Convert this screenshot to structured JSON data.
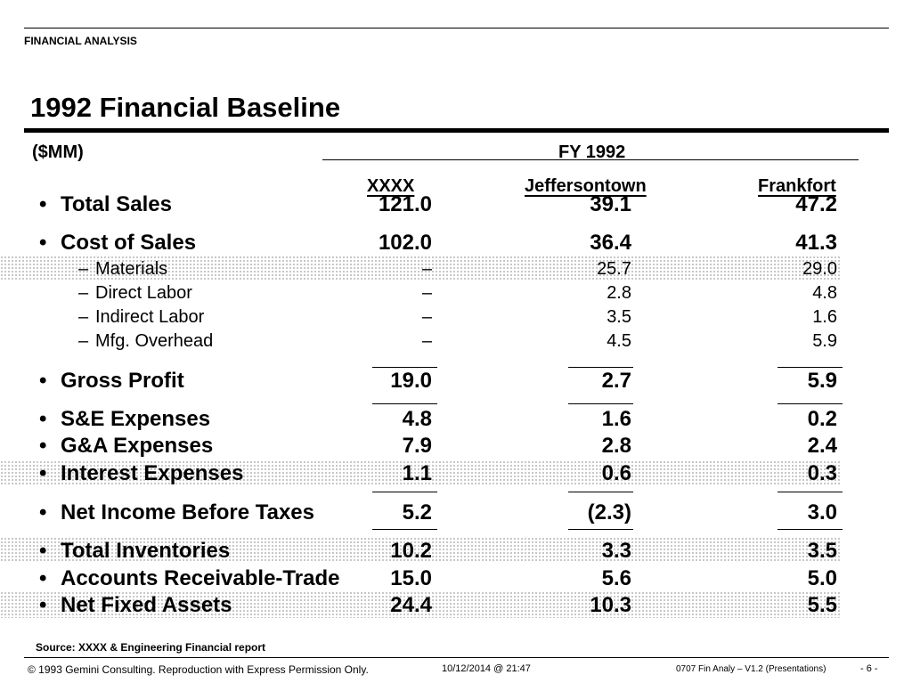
{
  "header": {
    "section_label": "FINANCIAL ANALYSIS"
  },
  "title": "1992 Financial Baseline",
  "units": "($MM)",
  "period_header": "FY 1992",
  "columns": [
    "XXXX",
    "Jeffersontown",
    "Frankfort"
  ],
  "bullet": "•",
  "dash": "–",
  "rows": [
    {
      "label": "Total Sales",
      "values": [
        "121.0",
        "39.1",
        "47.2"
      ]
    },
    {
      "label": "Cost of Sales",
      "values": [
        "102.0",
        "36.4",
        "41.3"
      ]
    },
    {
      "label": "Materials",
      "values": [
        "–",
        "25.7",
        "29.0"
      ]
    },
    {
      "label": "Direct Labor",
      "values": [
        "–",
        "2.8",
        "4.8"
      ]
    },
    {
      "label": "Indirect Labor",
      "values": [
        "–",
        "3.5",
        "1.6"
      ]
    },
    {
      "label": "Mfg. Overhead",
      "values": [
        "–",
        "4.5",
        "5.9"
      ]
    },
    {
      "label": "Gross Profit",
      "values": [
        "19.0",
        "2.7",
        "5.9"
      ]
    },
    {
      "label": "S&E Expenses",
      "values": [
        "4.8",
        "1.6",
        "0.2"
      ]
    },
    {
      "label": "G&A Expenses",
      "values": [
        "7.9",
        "2.8",
        "2.4"
      ]
    },
    {
      "label": "Interest Expenses",
      "values": [
        "1.1",
        "0.6",
        "0.3"
      ]
    },
    {
      "label": "Net Income Before Taxes",
      "values": [
        "5.2",
        "(2.3)",
        "3.0"
      ]
    },
    {
      "label": "Total Inventories",
      "values": [
        "10.2",
        "3.3",
        "3.5"
      ]
    },
    {
      "label": "Accounts Receivable-Trade",
      "values": [
        "15.0",
        "5.6",
        "5.0"
      ]
    },
    {
      "label": "Net Fixed Assets",
      "values": [
        "24.4",
        "10.3",
        "5.5"
      ]
    }
  ],
  "source_note": "Source: XXXX &  Engineering Financial report",
  "footer": {
    "copyright": "© 1993 Gemini Consulting. Reproduction with Express Permission Only.",
    "timestamp": "10/12/2014 @ 21:47",
    "doc_ref": "0707 Fin Analy – V1.2 (Presentations)",
    "page": "- 6 -"
  }
}
